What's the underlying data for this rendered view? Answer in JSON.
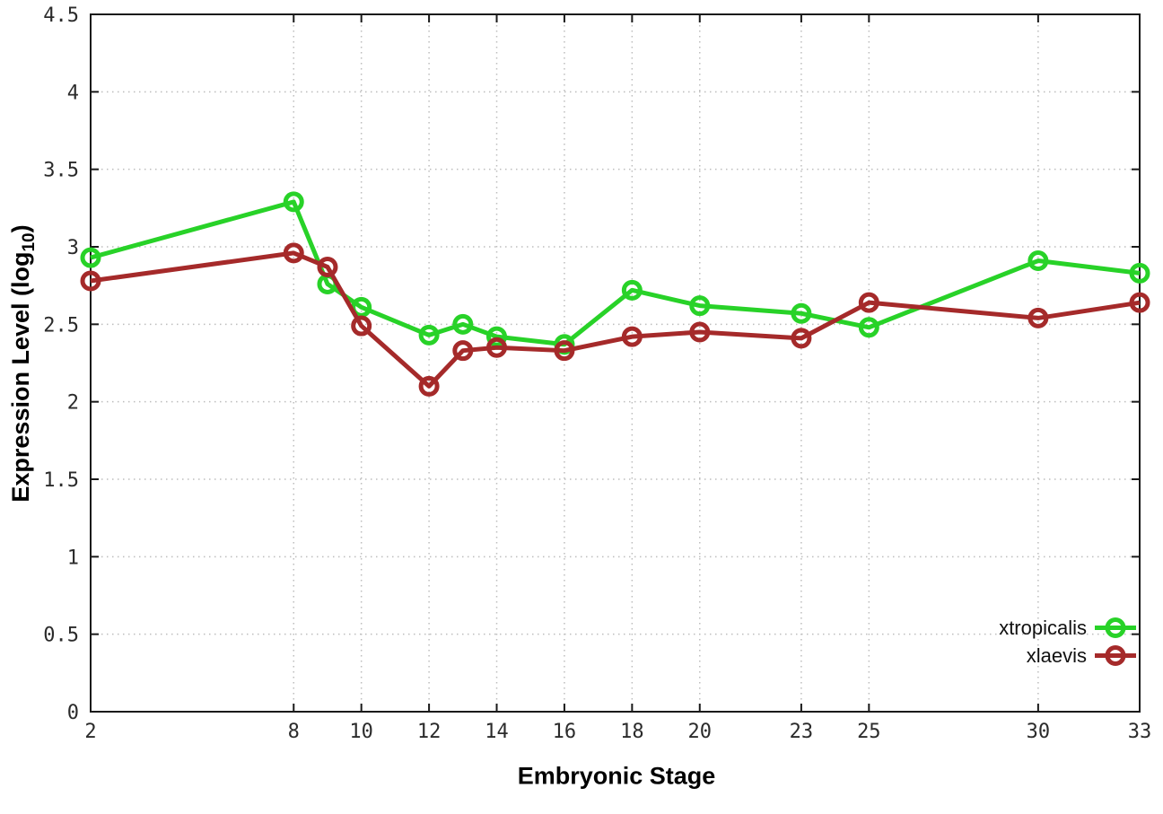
{
  "chart_data": {
    "type": "line",
    "title": "",
    "xlabel": "Embryonic Stage",
    "ylabel": {
      "prefix": "Expression Level (log",
      "subscript": "10",
      "suffix": ")"
    },
    "xlim": [
      2,
      33
    ],
    "ylim": [
      0,
      4.5
    ],
    "grid": true,
    "legend_position": "bottom-right",
    "x": [
      2,
      8,
      9,
      10,
      12,
      13,
      14,
      16,
      18,
      20,
      23,
      25,
      30,
      33
    ],
    "xticks": [
      2,
      8,
      10,
      12,
      14,
      16,
      18,
      20,
      23,
      25,
      30,
      33
    ],
    "xtick_labels": [
      "2",
      "8",
      "10",
      "12",
      "14",
      "16",
      "18",
      "20",
      "23",
      "25",
      "30",
      "33"
    ],
    "yticks": [
      0,
      0.5,
      1,
      1.5,
      2,
      2.5,
      3,
      3.5,
      4,
      4.5
    ],
    "ytick_labels": [
      "0",
      "0.5",
      "1",
      "1.5",
      "2",
      "2.5",
      "3",
      "3.5",
      "4",
      "4.5"
    ],
    "series": [
      {
        "name": "xtropicalis",
        "color": "#28d228",
        "marker": "open-circle",
        "values": [
          2.93,
          3.29,
          2.76,
          2.61,
          2.43,
          2.5,
          2.42,
          2.37,
          2.72,
          2.62,
          2.57,
          2.48,
          2.91,
          2.83
        ]
      },
      {
        "name": "xlaevis",
        "color": "#a52a2a",
        "marker": "open-circle",
        "values": [
          2.78,
          2.96,
          2.87,
          2.49,
          2.1,
          2.33,
          2.35,
          2.33,
          2.42,
          2.45,
          2.41,
          2.64,
          2.54,
          2.64
        ]
      }
    ],
    "colors": {
      "grid": "#bdbdbd",
      "frame": "#1a1a1a",
      "tick_text": "#2b2b2b"
    }
  }
}
